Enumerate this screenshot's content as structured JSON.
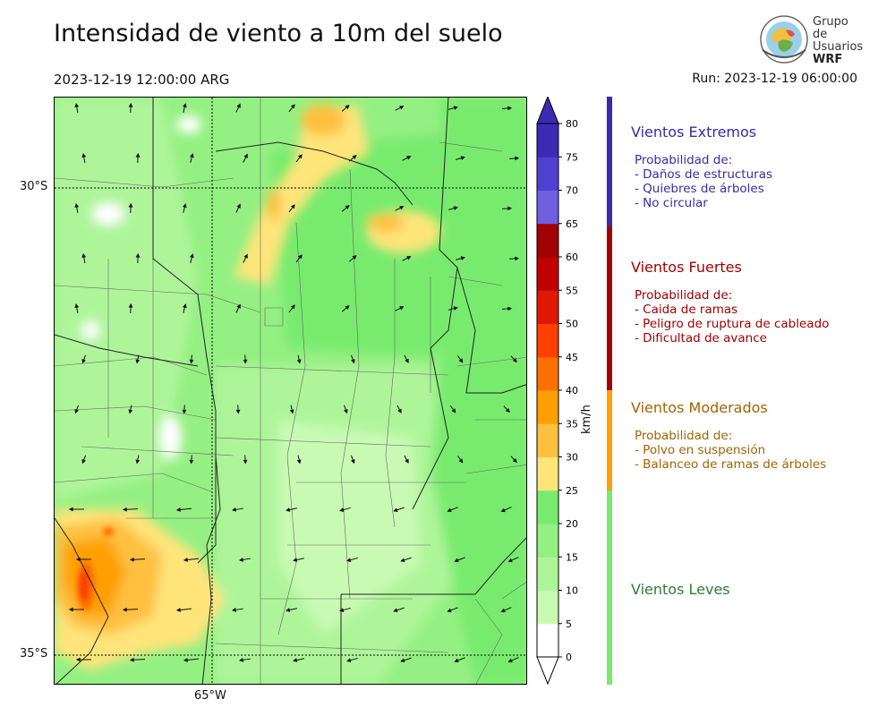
{
  "header": {
    "title": "Intensidad de viento a 10m del suelo",
    "valid_time": "2023-12-19 12:00:00 ARG",
    "run_time": "Run: 2023-12-19 06:00:00"
  },
  "logo": {
    "line1": "Grupo de",
    "line2": "Usuarios",
    "line3": "WRF"
  },
  "map": {
    "lat_labels": [
      "30°S",
      "35°S"
    ],
    "lon_labels": [
      "65°W"
    ]
  },
  "colorbar": {
    "unit": "km/h",
    "ticks": [
      "0",
      "5",
      "10",
      "15",
      "20",
      "25",
      "30",
      "35",
      "40",
      "45",
      "50",
      "55",
      "60",
      "65",
      "70",
      "75",
      "80"
    ],
    "colors": [
      "#ffffff",
      "#c8fab4",
      "#aef59a",
      "#94f082",
      "#78eb6e",
      "#ffe47a",
      "#ffc040",
      "#ffa000",
      "#ff7000",
      "#ff4000",
      "#e01800",
      "#c00000",
      "#a00000",
      "#7060e0",
      "#5040d0",
      "#3c2ab4"
    ]
  },
  "categories": [
    {
      "title": "Vientos Extremos",
      "color": "#3a2aa8",
      "bar_color": "#3a2aa8",
      "lines": [
        "Probabilidad de:",
        "- Daños de estructuras",
        "- Quiebres de árboles",
        "- No circular"
      ]
    },
    {
      "title": "Vientos Fuertes",
      "color": "#a00000",
      "bar_color": "#a00000",
      "lines": [
        "Probabilidad de:",
        "- Caida de ramas",
        "- Peligro de ruptura de cableado",
        "- Dificultad de avance"
      ]
    },
    {
      "title": "Vientos Moderados",
      "color": "#a06400",
      "bar_color": "#ffa000",
      "lines": [
        "Probabilidad de:",
        "- Polvo en suspensión",
        "- Balanceo de ramas de árboles"
      ]
    },
    {
      "title": "Vientos Leves",
      "color": "#2e7d32",
      "bar_color": "#78eb6e",
      "lines": []
    }
  ]
}
